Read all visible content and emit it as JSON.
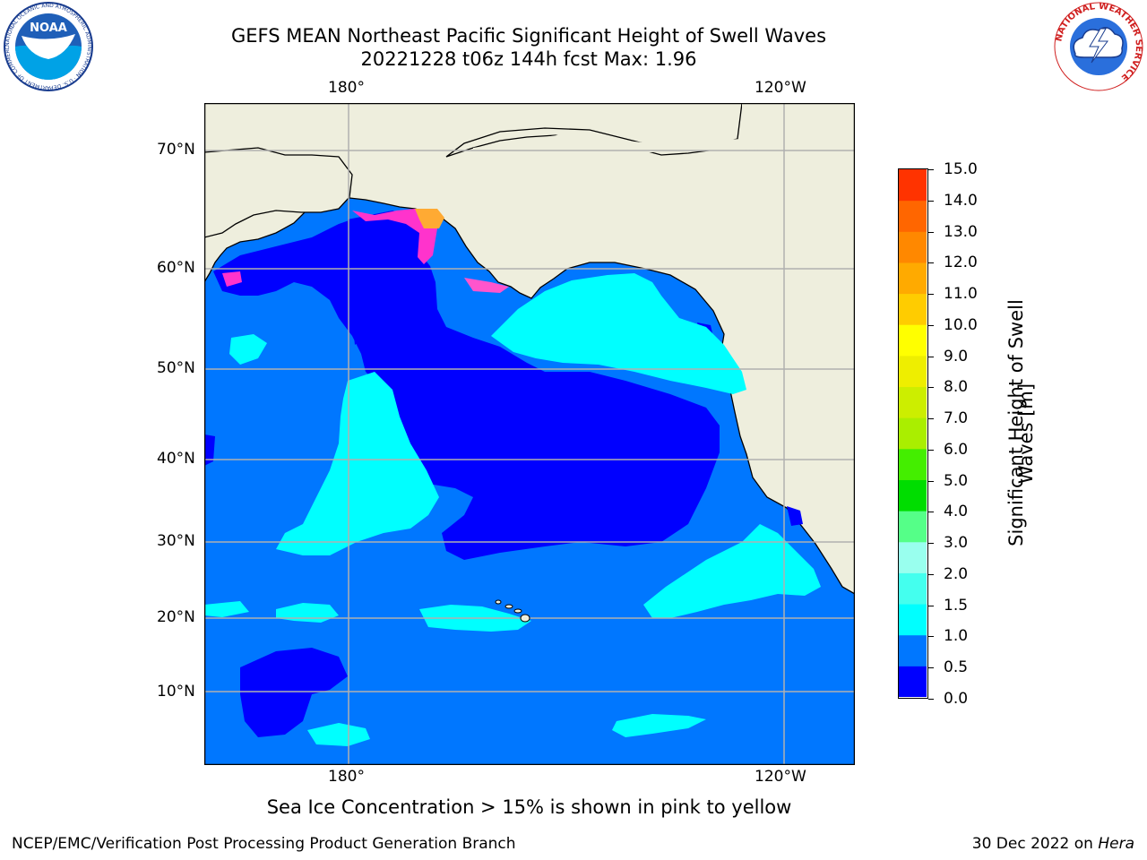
{
  "header": {
    "title_line1": "GEFS MEAN Northeast Pacific Significant Height of Swell Waves",
    "title_line2": "20221228 t06z 144h fcst   Max: 1.96"
  },
  "logos": {
    "left": {
      "name": "noaa-logo",
      "text": "NOAA",
      "ring_text": "NATIONAL OCEANIC AND ATMOSPHERIC ADMINISTRATION · U.S. DEPARTMENT OF COMMERCE"
    },
    "right": {
      "name": "nws-logo",
      "ring_text": "NATIONAL WEATHER SERVICE"
    }
  },
  "map": {
    "lon_labels_top": [
      "180°",
      "120°W"
    ],
    "lon_labels_bottom": [
      "180°",
      "120°W"
    ],
    "lat_labels": [
      "70°N",
      "60°N",
      "50°N",
      "40°N",
      "30°N",
      "20°N",
      "10°N"
    ],
    "colors": {
      "land": "#eeeedd",
      "bin_0_0_5": "#0000ff",
      "bin_0_5_1": "#0077ff",
      "bin_1_1_5": "#00ffff",
      "ice_pink": "#ff33cc",
      "ice_orange": "#ffaa33",
      "grid": "#b0b0b0"
    }
  },
  "colorbar": {
    "ticks": [
      "0.0",
      "0.5",
      "1.0",
      "1.5",
      "2.0",
      "3.0",
      "4.0",
      "5.0",
      "6.0",
      "7.0",
      "8.0",
      "9.0",
      "10.0",
      "11.0",
      "12.0",
      "13.0",
      "14.0",
      "15.0"
    ],
    "colors": [
      "#0000ff",
      "#0077ff",
      "#00ffff",
      "#44ffee",
      "#99ffee",
      "#55ff88",
      "#00dd00",
      "#44ee00",
      "#aaee00",
      "#ccee00",
      "#eeee00",
      "#ffff00",
      "#ffcc00",
      "#ffaa00",
      "#ff8800",
      "#ff6600",
      "#ff3300",
      "#ff0000"
    ],
    "label_line1": "Significant Height of Swell",
    "label_line2": "Waves [m]"
  },
  "note": "Sea Ice Concentration > 15% is shown in pink to yellow",
  "footer": {
    "left": "NCEP/EMC/Verification Post Processing Product Generation Branch",
    "date": "30 Dec 2022 on ",
    "machine": "Hera"
  }
}
